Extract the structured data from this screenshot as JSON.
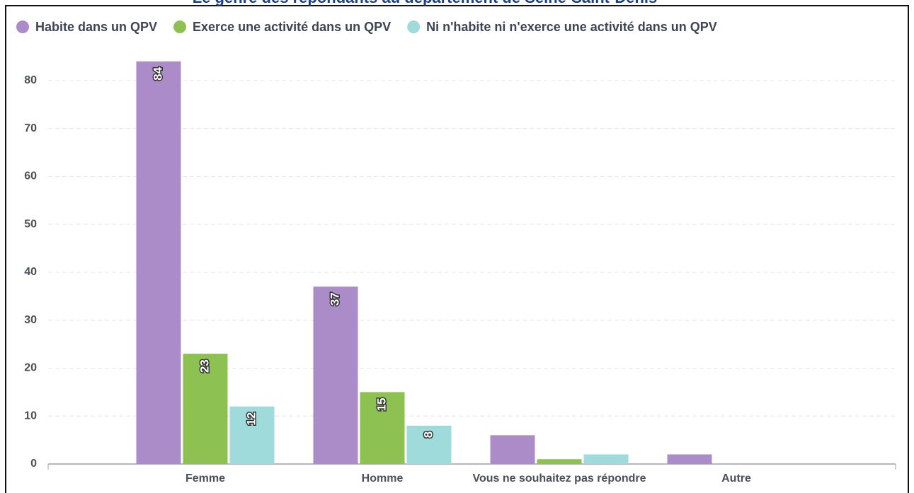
{
  "chart_data": {
    "type": "bar",
    "title": "Le genre des répondants au département de Seine-Saint-Denis",
    "categories": [
      "Femme",
      "Homme",
      "Vous ne souhaitez pas répondre",
      "Autre"
    ],
    "series": [
      {
        "name": "Habite dans un QPV",
        "color": "#ab8cc8",
        "values": [
          84,
          37,
          6,
          2
        ]
      },
      {
        "name": "Exerce une activité dans un QPV",
        "color": "#8dc152",
        "values": [
          23,
          15,
          1,
          0
        ]
      },
      {
        "name": "Ni n'habite ni n'exerce une activité dans un QPV",
        "color": "#9fdbdb",
        "values": [
          12,
          8,
          2,
          0
        ]
      }
    ],
    "ylim": [
      0,
      85
    ],
    "yticks": [
      0,
      10,
      20,
      30,
      40,
      50,
      60,
      70,
      80
    ],
    "grid": true,
    "legend": "top"
  }
}
